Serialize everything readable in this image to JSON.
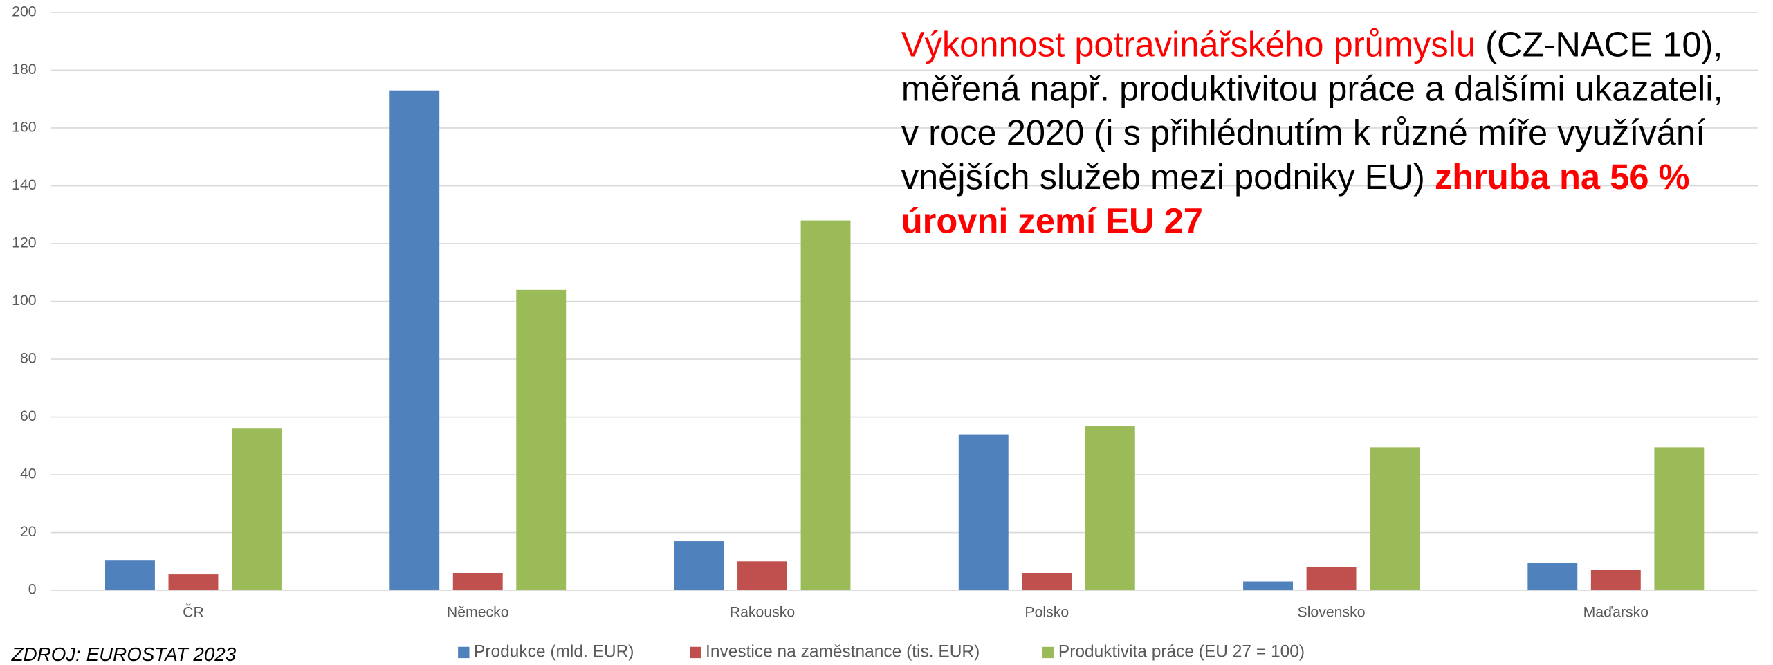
{
  "chart_data": {
    "type": "bar",
    "categories": [
      "ČR",
      "Německo",
      "Rakousko",
      "Polsko",
      "Slovensko",
      "Maďarsko"
    ],
    "series": [
      {
        "name": "Produkce (mld. EUR)",
        "color": "#4f81bd",
        "values": [
          10.5,
          173,
          17,
          54,
          3,
          9.5
        ]
      },
      {
        "name": "Investice na zaměstnance (tis. EUR)",
        "color": "#c0504d",
        "values": [
          5.5,
          6,
          10,
          6,
          8,
          7
        ]
      },
      {
        "name": "Produktivita práce (EU 27 = 100)",
        "color": "#9bbb59",
        "values": [
          56,
          104,
          128,
          57,
          49.5,
          49.5
        ]
      }
    ],
    "ylim": [
      0,
      200
    ],
    "yticks": [
      0,
      20,
      40,
      60,
      80,
      100,
      120,
      140,
      160,
      180,
      200
    ],
    "grid": true,
    "annotation": [
      [
        {
          "text": "Výkonnost potravinářského průmyslu",
          "color": "#ff0000",
          "bold": false
        },
        {
          "text": " (CZ-NACE 10),",
          "color": "#000000",
          "bold": false
        }
      ],
      [
        {
          "text": "měřená např. produktivitou práce a dalšími ukazateli,",
          "color": "#000000",
          "bold": false
        }
      ],
      [
        {
          "text": "v roce 2020 (i s přihlédnutím k různé míře využívání",
          "color": "#000000",
          "bold": false
        }
      ],
      [
        {
          "text": "vnějších služeb mezi podniky EU) ",
          "color": "#000000",
          "bold": false
        },
        {
          "text": "zhruba na 56 %",
          "color": "#ff0000",
          "bold": true
        }
      ],
      [
        {
          "text": "úrovni zemí EU 27",
          "color": "#ff0000",
          "bold": true
        }
      ]
    ],
    "source": "ZDROJ: EUROSTAT 2023"
  }
}
